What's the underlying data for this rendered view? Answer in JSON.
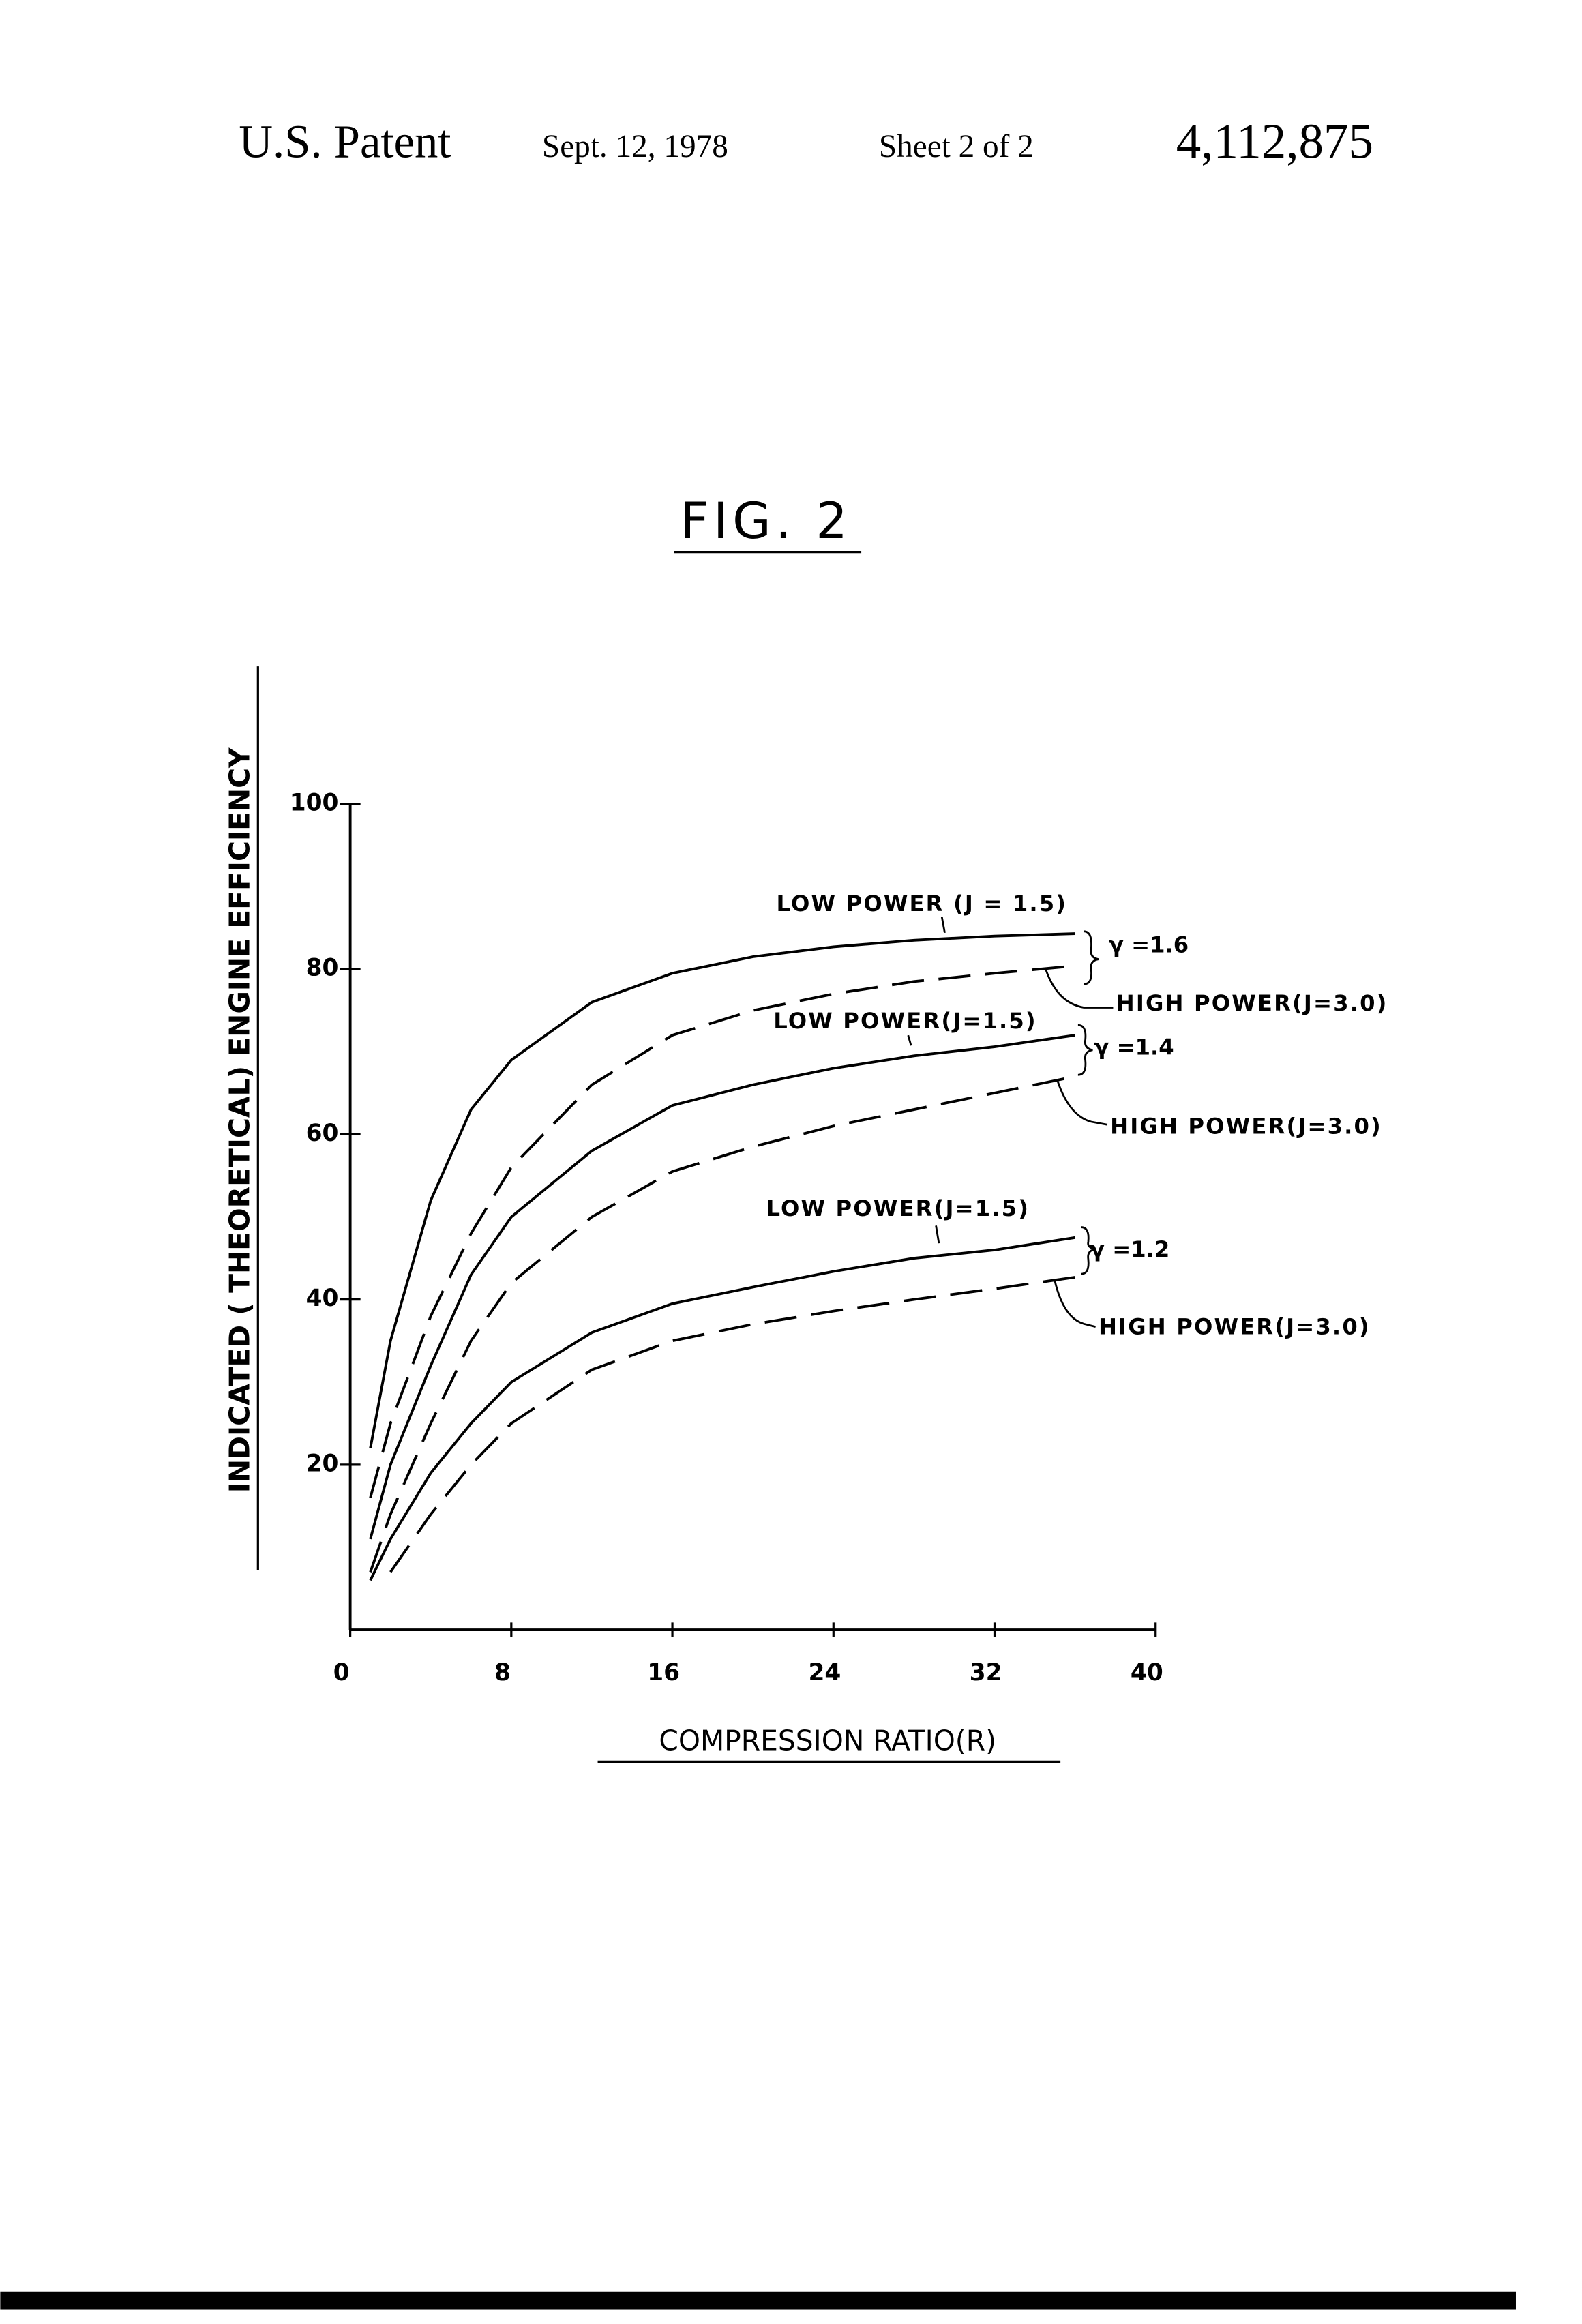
{
  "header": {
    "left": "U.S. Patent",
    "date": "Sept. 12, 1978",
    "sheet": "Sheet 2 of 2",
    "number": "4,112,875"
  },
  "chart_data": {
    "type": "line",
    "title": "FIG. 2",
    "x_label": "COMPRESSION RATIO(R)",
    "y_label": "INDICATED ( THEORETICAL) ENGINE EFFICIENCY",
    "x": [
      1,
      2,
      4,
      6,
      8,
      12,
      16,
      20,
      24,
      28,
      32,
      36
    ],
    "xlim": [
      0,
      40
    ],
    "xticks": [
      0,
      8,
      16,
      24,
      32,
      40
    ],
    "ylim": [
      0,
      100
    ],
    "yticks": [
      20,
      40,
      60,
      80,
      100
    ],
    "grid": false,
    "series": [
      {
        "name": "LOW POWER (J = 1.5)",
        "color": "#000000",
        "line_style": "solid",
        "values": [
          22,
          35,
          52,
          63,
          69,
          76,
          79.5,
          81.5,
          82.7,
          83.5,
          84,
          84.3
        ]
      },
      {
        "name": "HIGH POWER(J=3.0)",
        "color": "#000000",
        "line_style": "dashed",
        "values": [
          16,
          25,
          38,
          48,
          56,
          66,
          72,
          75,
          77,
          78.5,
          79.5,
          80.4
        ]
      },
      {
        "name": "LOW POWER(J=1.5)",
        "color": "#000000",
        "line_style": "solid",
        "values": [
          11,
          20,
          32,
          43,
          50,
          58,
          63.5,
          66,
          68,
          69.5,
          70.6,
          72
        ]
      },
      {
        "name": "HIGH POWER(J=3.0)",
        "color": "#000000",
        "line_style": "dashed",
        "values": [
          7,
          14,
          25,
          35,
          42,
          50,
          55.5,
          58.5,
          61,
          63,
          65,
          67
        ]
      },
      {
        "name": "LOW POWER(J=1.5)",
        "color": "#000000",
        "line_style": "solid",
        "values": [
          6,
          11,
          19,
          25,
          30,
          36,
          39.5,
          41.5,
          43.4,
          45,
          46,
          47.5
        ]
      },
      {
        "name": "HIGH POWER(J=3.0)",
        "color": "#000000",
        "line_style": "dashed",
        "values": [
          null,
          7,
          14,
          20,
          25,
          31.5,
          35,
          37,
          38.6,
          40,
          41.3,
          42.7
        ]
      }
    ],
    "annotations": [
      "γ =1.6",
      "γ =1.4",
      "γ =1.2"
    ]
  }
}
